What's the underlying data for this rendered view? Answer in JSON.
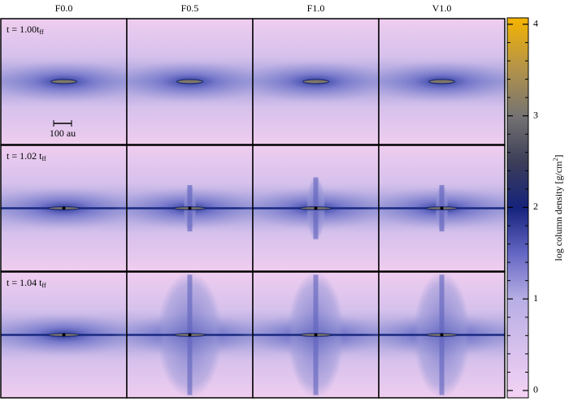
{
  "column_labels": [
    "F0.0",
    "F0.5",
    "F1.0",
    "V1.0"
  ],
  "row_labels": [
    {
      "text": "t = 1.00t",
      "sub": "ff"
    },
    {
      "text": "t = 1.02 t",
      "sub": "ff"
    },
    {
      "text": "t = 1.04 t",
      "sub": "ff"
    }
  ],
  "scale_bar_label": "100 au",
  "colorbar": {
    "label": {
      "text": "log column density [g/cm",
      "sup": "2",
      "end": "]"
    },
    "lim": [
      -0.08,
      4.07
    ],
    "ticks": [
      0,
      1,
      2,
      3,
      4
    ],
    "minor_ticks": [
      0.2,
      0.4,
      0.6,
      0.8,
      1.2,
      1.4,
      1.6,
      1.8,
      2.2,
      2.4,
      2.6,
      2.8,
      3.2,
      3.4,
      3.6,
      3.8
    ]
  }
}
